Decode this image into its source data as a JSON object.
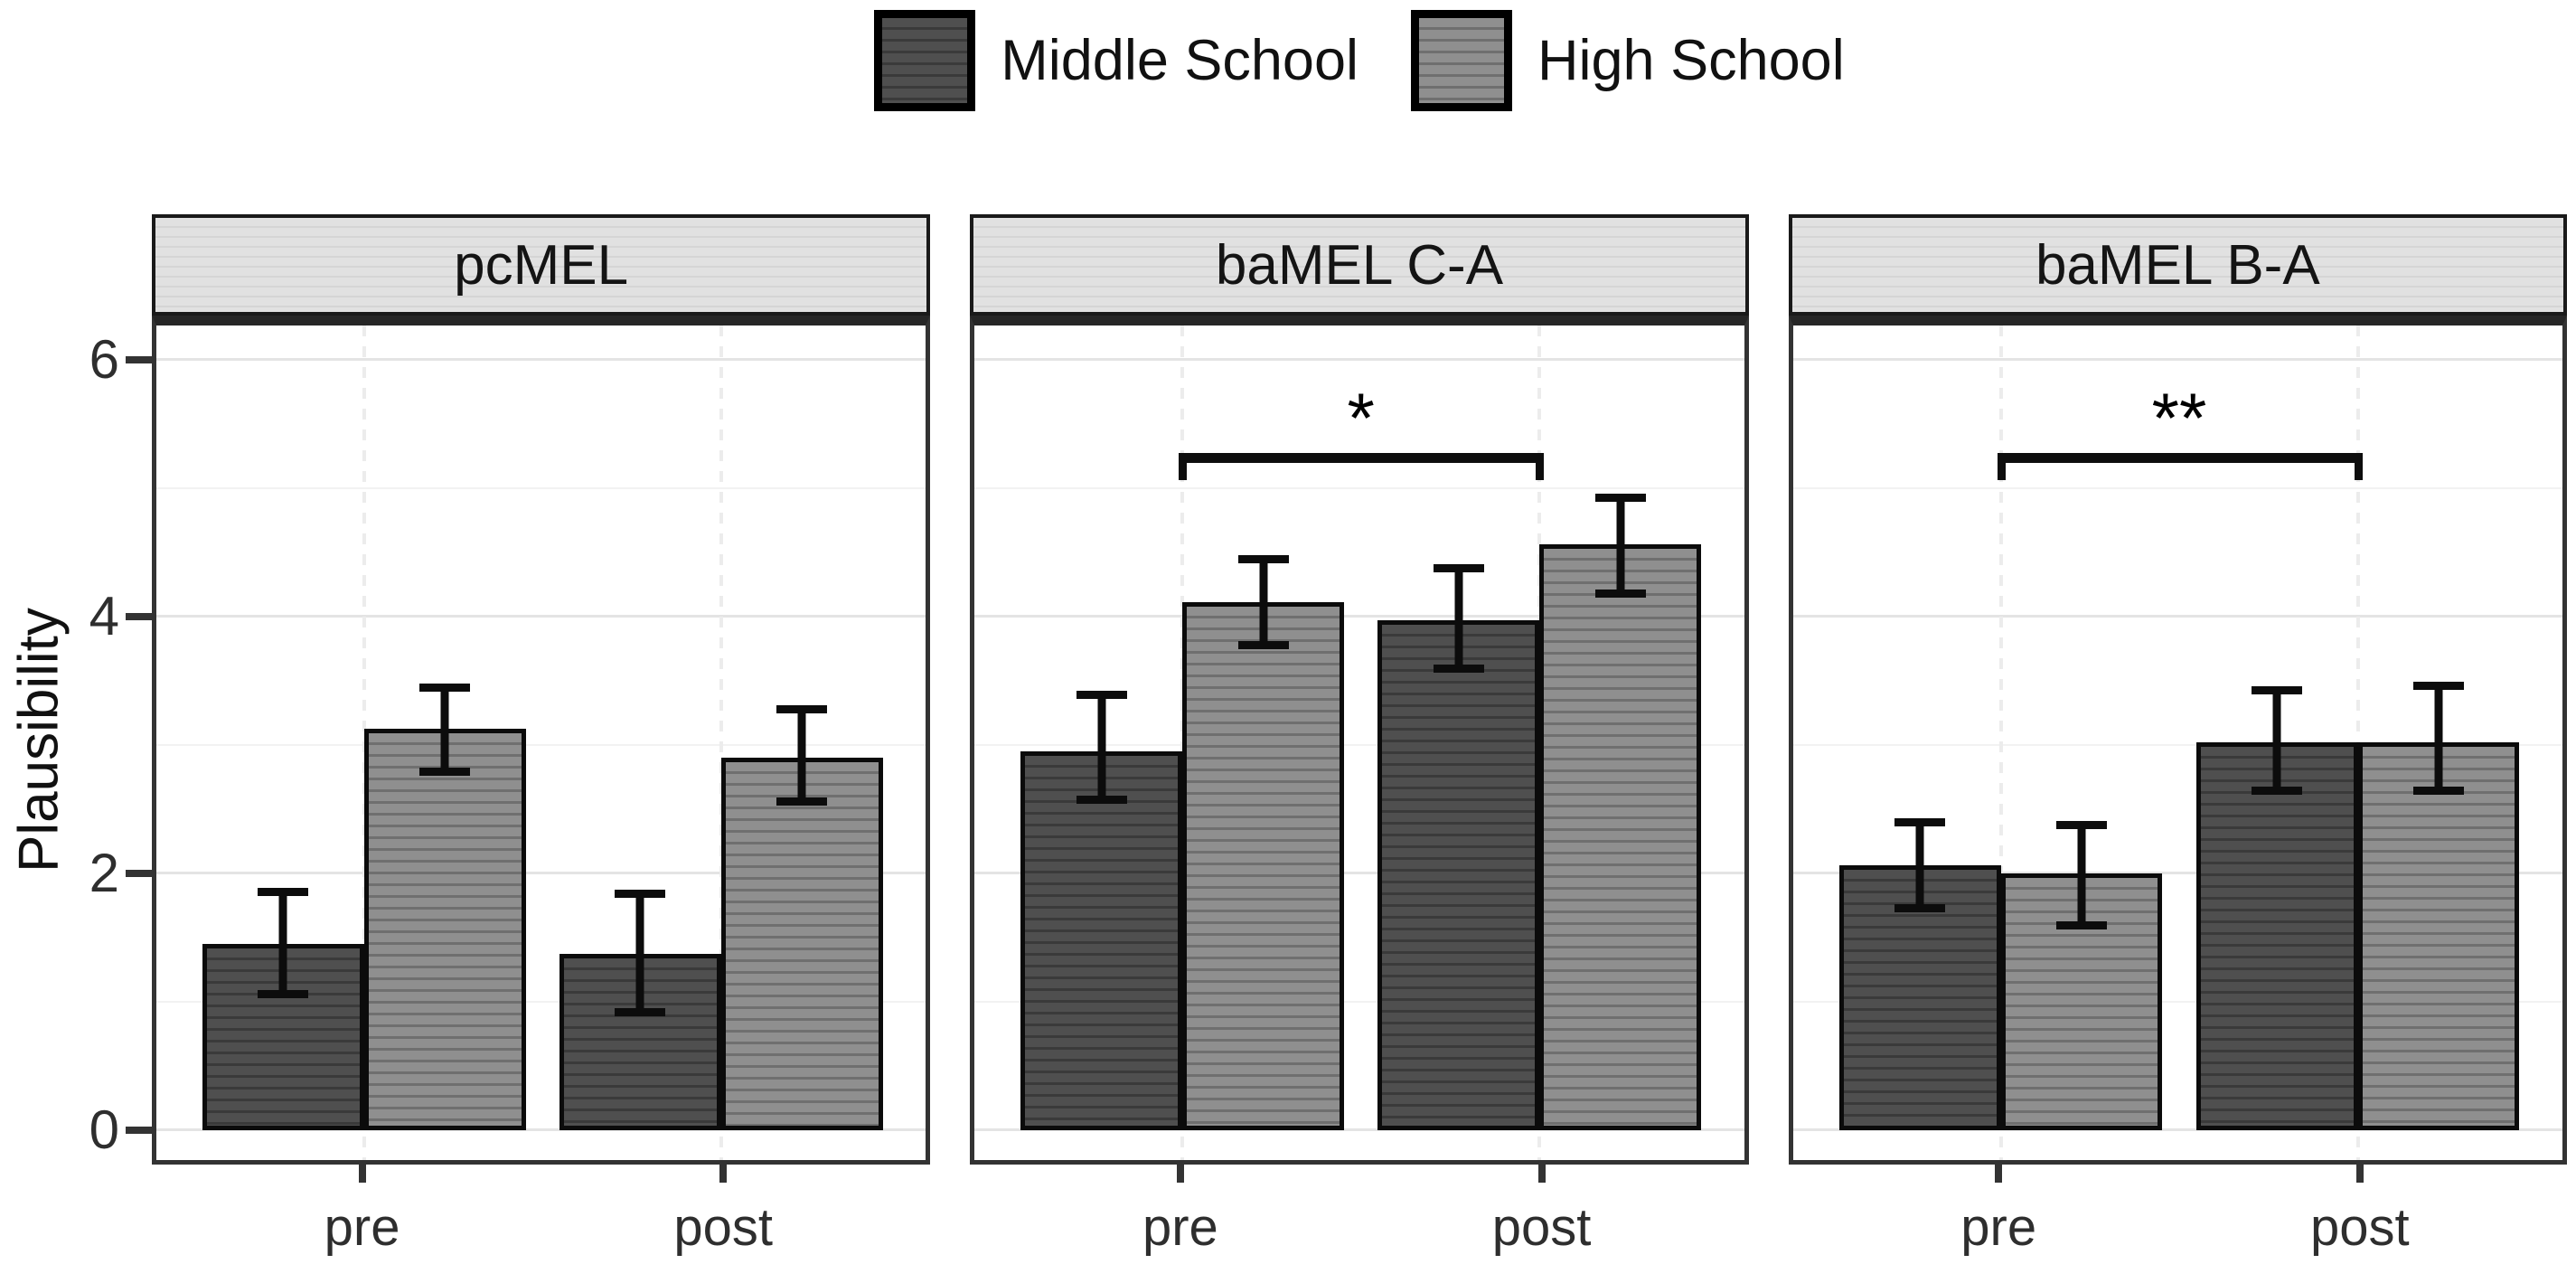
{
  "legend": {
    "items": [
      {
        "label": "Middle School"
      },
      {
        "label": "High School"
      }
    ]
  },
  "chart_data": {
    "type": "bar",
    "ylabel": "Plausibility",
    "xlabel": "",
    "ylim": [
      0,
      6.3
    ],
    "yticks": [
      0,
      2,
      4,
      6
    ],
    "yticks_minor": [
      1,
      3,
      5
    ],
    "grid": true,
    "legend_position": "top-center",
    "categories": [
      "pre",
      "post"
    ],
    "series": [
      {
        "name": "Middle School",
        "fill": "#4f4f4f",
        "stripe": "#3a3a3a"
      },
      {
        "name": "High School",
        "fill": "#8f8f8f",
        "stripe": "#6f6f6f"
      }
    ],
    "panels": [
      {
        "title": "pcMEL",
        "groups": [
          {
            "label": "pre",
            "bars": [
              {
                "series": "Middle School",
                "mean": 1.45,
                "ci_low": 1.03,
                "ci_high": 1.89
              },
              {
                "series": "High School",
                "mean": 3.13,
                "ci_low": 2.76,
                "ci_high": 3.48
              }
            ]
          },
          {
            "label": "post",
            "bars": [
              {
                "series": "Middle School",
                "mean": 1.37,
                "ci_low": 0.89,
                "ci_high": 1.87
              },
              {
                "series": "High School",
                "mean": 2.9,
                "ci_low": 2.53,
                "ci_high": 3.31
              }
            ]
          }
        ],
        "significance": null
      },
      {
        "title": "baMEL C-A",
        "groups": [
          {
            "label": "pre",
            "bars": [
              {
                "series": "Middle School",
                "mean": 2.95,
                "ci_low": 2.54,
                "ci_high": 3.42
              },
              {
                "series": "High School",
                "mean": 4.11,
                "ci_low": 3.75,
                "ci_high": 4.48
              }
            ]
          },
          {
            "label": "post",
            "bars": [
              {
                "series": "Middle School",
                "mean": 3.97,
                "ci_low": 3.56,
                "ci_high": 4.41
              },
              {
                "series": "High School",
                "mean": 4.56,
                "ci_low": 4.15,
                "ci_high": 4.96
              }
            ]
          }
        ],
        "significance": {
          "label": "*",
          "y": 5.2,
          "from": "pre",
          "to": "post"
        }
      },
      {
        "title": "baMEL B-A",
        "groups": [
          {
            "label": "pre",
            "bars": [
              {
                "series": "Middle School",
                "mean": 2.06,
                "ci_low": 1.7,
                "ci_high": 2.43
              },
              {
                "series": "High School",
                "mean": 2.0,
                "ci_low": 1.56,
                "ci_high": 2.41
              }
            ]
          },
          {
            "label": "post",
            "bars": [
              {
                "series": "Middle School",
                "mean": 3.02,
                "ci_low": 2.61,
                "ci_high": 3.46
              },
              {
                "series": "High School",
                "mean": 3.02,
                "ci_low": 2.61,
                "ci_high": 3.49
              }
            ]
          }
        ],
        "significance": {
          "label": "**",
          "y": 5.2,
          "from": "pre",
          "to": "post"
        }
      }
    ]
  }
}
